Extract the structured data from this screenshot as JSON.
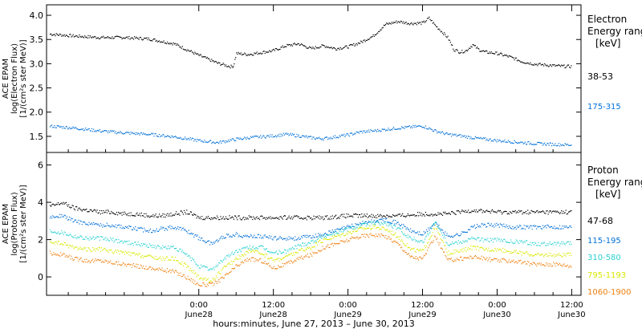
{
  "chart_data": [
    {
      "type": "scatter",
      "panel": "electron",
      "ylabel_lines": [
        "ACE EPAM",
        "log(Electron Flux)",
        "[1/(cm²s ster MeV)]"
      ],
      "legend_title_lines": [
        "Electron",
        "Energy ranges",
        "[keV]"
      ],
      "yticks": [
        "1.5",
        "2.0",
        "2.5",
        "3.0",
        "3.5",
        "4.0"
      ],
      "ylim": [
        1.2,
        4.15
      ],
      "xlim": [
        -24.5,
        61.5
      ],
      "grid": false,
      "series": [
        {
          "name": "38-53",
          "color": "#000000",
          "x": [
            -24,
            -20,
            -16,
            -12,
            -8,
            -4,
            0,
            3,
            5,
            5.5,
            6,
            8,
            10,
            12,
            14,
            16,
            18,
            20,
            22,
            24,
            26,
            28,
            30,
            32,
            34,
            36,
            37,
            38,
            40,
            41,
            42,
            43,
            44,
            45,
            46,
            48,
            50,
            52,
            54,
            56,
            58,
            60
          ],
          "y": [
            3.62,
            3.58,
            3.55,
            3.55,
            3.52,
            3.42,
            3.18,
            3.02,
            2.95,
            2.96,
            3.22,
            3.2,
            3.24,
            3.28,
            3.38,
            3.42,
            3.32,
            3.38,
            3.32,
            3.36,
            3.45,
            3.58,
            3.82,
            3.88,
            3.84,
            3.85,
            3.95,
            3.8,
            3.55,
            3.3,
            3.25,
            3.28,
            3.4,
            3.3,
            3.25,
            3.22,
            3.15,
            3.05,
            3.0,
            2.98,
            2.96,
            2.95
          ]
        },
        {
          "name": "175-315",
          "color": "#0070d8",
          "x": [
            -24,
            -20,
            -16,
            -12,
            -8,
            -4,
            0,
            3,
            6,
            8,
            10,
            12,
            14,
            16,
            18,
            20,
            22,
            24,
            26,
            28,
            30,
            32,
            34,
            36,
            38,
            40,
            42,
            44,
            46,
            48,
            50,
            52,
            54,
            56,
            58,
            60
          ],
          "y": [
            1.72,
            1.68,
            1.62,
            1.58,
            1.55,
            1.5,
            1.42,
            1.38,
            1.45,
            1.48,
            1.5,
            1.52,
            1.55,
            1.52,
            1.48,
            1.46,
            1.5,
            1.54,
            1.6,
            1.62,
            1.65,
            1.68,
            1.7,
            1.72,
            1.62,
            1.55,
            1.52,
            1.48,
            1.45,
            1.42,
            1.4,
            1.38,
            1.36,
            1.35,
            1.34,
            1.33
          ]
        }
      ]
    },
    {
      "type": "scatter",
      "panel": "proton",
      "ylabel_lines": [
        "ACE EPAM",
        "log(Proton Flux)",
        "[1/(cm²s ster MeV)]"
      ],
      "legend_title_lines": [
        "Proton",
        "Energy ranges",
        "[keV]"
      ],
      "yticks": [
        "0",
        "2",
        "4",
        "6"
      ],
      "ylim": [
        -0.9,
        6.5
      ],
      "xlim": [
        -24.5,
        61.5
      ],
      "grid": false,
      "series": [
        {
          "name": "47-68",
          "color": "#000000",
          "x": [
            -24,
            -22,
            -20,
            -18,
            -16,
            -14,
            -12,
            -10,
            -8,
            -6,
            -4,
            -2,
            0,
            4,
            8,
            12,
            16,
            20,
            24,
            28,
            32,
            36,
            40,
            44,
            48,
            52,
            56,
            60
          ],
          "y": [
            3.8,
            4.0,
            3.7,
            3.6,
            3.5,
            3.5,
            3.4,
            3.4,
            3.3,
            3.3,
            3.4,
            3.5,
            3.2,
            3.2,
            3.2,
            3.2,
            3.2,
            3.2,
            3.3,
            3.3,
            3.3,
            3.4,
            3.4,
            3.6,
            3.5,
            3.5,
            3.5,
            3.5
          ]
        },
        {
          "name": "115-195",
          "color": "#0070d8",
          "x": [
            -24,
            -22,
            -20,
            -18,
            -16,
            -14,
            -12,
            -10,
            -8,
            -6,
            -4,
            -2,
            0,
            2,
            4,
            6,
            8,
            10,
            12,
            14,
            16,
            18,
            20,
            22,
            24,
            26,
            28,
            30,
            32,
            34,
            36,
            38,
            40,
            42,
            44,
            46,
            48,
            50,
            52,
            54,
            56,
            58,
            60
          ],
          "y": [
            3.2,
            3.3,
            3.0,
            2.9,
            2.8,
            2.8,
            2.7,
            2.6,
            2.5,
            2.6,
            2.7,
            2.5,
            2.1,
            1.8,
            2.2,
            2.3,
            2.2,
            2.2,
            2.1,
            2.1,
            2.1,
            2.2,
            2.3,
            2.5,
            2.7,
            2.9,
            3.0,
            3.1,
            2.9,
            2.5,
            2.3,
            2.9,
            2.2,
            2.3,
            2.7,
            2.8,
            2.8,
            2.7,
            2.7,
            2.7,
            2.7,
            2.7,
            2.7
          ]
        },
        {
          "name": "310-580",
          "color": "#2ad0d0",
          "x": [
            -24,
            -22,
            -20,
            -18,
            -16,
            -14,
            -12,
            -10,
            -8,
            -6,
            -4,
            -2,
            0,
            2,
            4,
            6,
            8,
            10,
            12,
            14,
            16,
            18,
            20,
            22,
            24,
            26,
            28,
            30,
            32,
            34,
            36,
            38,
            40,
            42,
            44,
            46,
            48,
            50,
            52,
            54,
            56,
            58,
            60
          ],
          "y": [
            2.5,
            2.4,
            2.2,
            2.1,
            2.1,
            2.0,
            1.9,
            1.8,
            1.7,
            1.6,
            1.6,
            1.2,
            0.6,
            0.4,
            1.0,
            1.4,
            1.6,
            1.6,
            1.3,
            1.4,
            1.7,
            1.9,
            2.2,
            2.4,
            2.6,
            2.8,
            2.9,
            2.9,
            2.6,
            2.1,
            1.9,
            3.0,
            1.8,
            1.9,
            2.1,
            2.0,
            2.0,
            1.9,
            1.9,
            1.8,
            1.8,
            1.8,
            1.8
          ]
        },
        {
          "name": "795-1193",
          "color": "#d8e800",
          "x": [
            -24,
            -22,
            -20,
            -18,
            -16,
            -14,
            -12,
            -10,
            -8,
            -6,
            -4,
            -2,
            0,
            2,
            4,
            6,
            8,
            10,
            12,
            14,
            16,
            18,
            20,
            22,
            24,
            26,
            28,
            30,
            32,
            34,
            36,
            38,
            40,
            42,
            44,
            46,
            48,
            50,
            52,
            54,
            56,
            58,
            60
          ],
          "y": [
            1.9,
            1.8,
            1.6,
            1.5,
            1.5,
            1.4,
            1.3,
            1.2,
            1.1,
            1.0,
            1.0,
            0.6,
            0.0,
            -0.2,
            0.5,
            1.0,
            1.4,
            1.3,
            0.9,
            1.1,
            1.4,
            1.6,
            2.0,
            2.2,
            2.4,
            2.6,
            2.7,
            2.6,
            2.2,
            1.5,
            1.4,
            2.7,
            1.3,
            1.4,
            1.6,
            1.5,
            1.5,
            1.4,
            1.3,
            1.2,
            1.2,
            1.2,
            1.2
          ]
        },
        {
          "name": "1060-1900",
          "color": "#f08010",
          "x": [
            -24,
            -22,
            -20,
            -18,
            -16,
            -14,
            -12,
            -10,
            -8,
            -6,
            -4,
            -2,
            0,
            2,
            4,
            6,
            8,
            10,
            12,
            14,
            16,
            18,
            20,
            22,
            24,
            26,
            28,
            30,
            32,
            34,
            36,
            38,
            40,
            42,
            44,
            46,
            48,
            50,
            52,
            54,
            56,
            58,
            60
          ],
          "y": [
            1.3,
            1.2,
            1.0,
            0.9,
            0.9,
            0.8,
            0.7,
            0.6,
            0.5,
            0.4,
            0.3,
            0.0,
            -0.4,
            -0.4,
            0.0,
            0.6,
            1.0,
            0.9,
            0.5,
            0.7,
            1.0,
            1.2,
            1.6,
            1.8,
            2.0,
            2.2,
            2.3,
            2.2,
            1.8,
            1.1,
            1.0,
            2.2,
            0.9,
            1.0,
            1.1,
            1.0,
            0.9,
            0.9,
            0.8,
            0.7,
            0.7,
            0.7,
            0.6
          ]
        }
      ]
    }
  ],
  "x_axis": {
    "ticks": [
      {
        "x": 0,
        "top": "0:00",
        "bottom": "June28"
      },
      {
        "x": 12,
        "top": "12:00",
        "bottom": "June28"
      },
      {
        "x": 24,
        "top": "0:00",
        "bottom": "June29"
      },
      {
        "x": 36,
        "top": "12:00",
        "bottom": "June29"
      },
      {
        "x": 48,
        "top": "0:00",
        "bottom": "June30"
      },
      {
        "x": 60,
        "top": "12:00",
        "bottom": "June30"
      }
    ],
    "minor_ticks": [
      -21,
      -18,
      -15,
      -12,
      -9,
      -6,
      -3,
      3,
      6,
      9,
      15,
      18,
      21,
      27,
      30,
      33,
      39,
      42,
      45,
      51,
      54,
      57,
      63,
      66,
      69
    ],
    "label": "hours:minutes, June 27, 2013 – June 30, 2013"
  }
}
